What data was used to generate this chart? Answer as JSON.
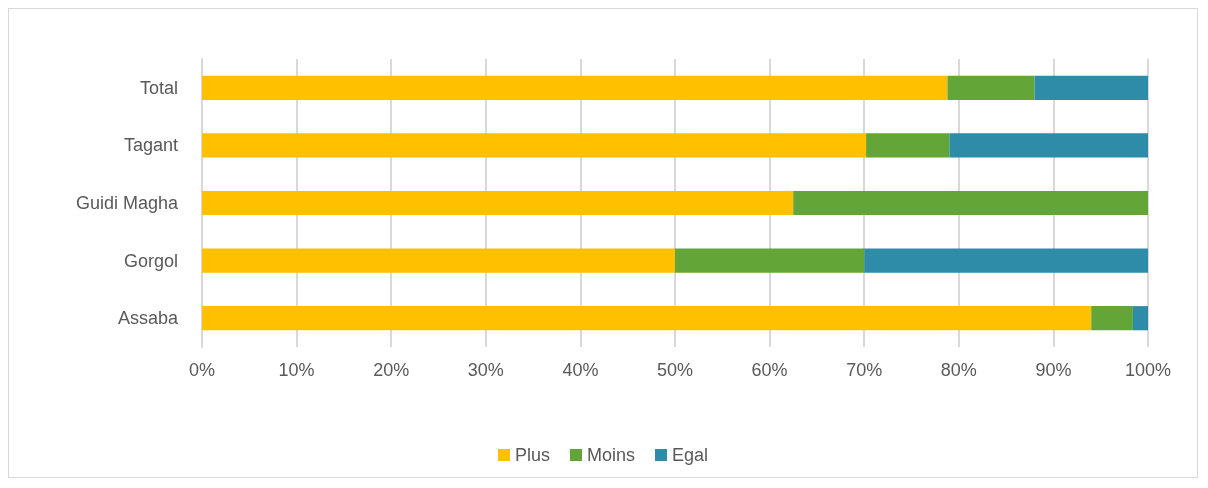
{
  "chart_data": {
    "type": "bar",
    "orientation": "horizontal",
    "stacked": true,
    "categories": [
      "Total",
      "Tagant",
      "Guidi Magha",
      "Gorgol",
      "Assaba"
    ],
    "series": [
      {
        "name": "Plus",
        "color": "#ffc000",
        "values": [
          78.8,
          70.2,
          62.5,
          50,
          94.0
        ]
      },
      {
        "name": "Moins",
        "color": "#63a537",
        "values": [
          9.2,
          8.8,
          37.5,
          20,
          4.4
        ]
      },
      {
        "name": "Egal",
        "color": "#2e8ca8",
        "values": [
          12,
          21,
          0,
          30,
          1.6
        ]
      }
    ],
    "xlim": [
      0,
      100
    ],
    "xticks": [
      {
        "value": 0,
        "label": "0%"
      },
      {
        "value": 10,
        "label": "10%"
      },
      {
        "value": 20,
        "label": "20%"
      },
      {
        "value": 30,
        "label": "30%"
      },
      {
        "value": 40,
        "label": "40%"
      },
      {
        "value": 50,
        "label": "50%"
      },
      {
        "value": 60,
        "label": "60%"
      },
      {
        "value": 70,
        "label": "70%"
      },
      {
        "value": 80,
        "label": "80%"
      },
      {
        "value": 90,
        "label": "90%"
      },
      {
        "value": 100,
        "label": "100%"
      }
    ],
    "grid": "x",
    "legend": "bottom"
  }
}
